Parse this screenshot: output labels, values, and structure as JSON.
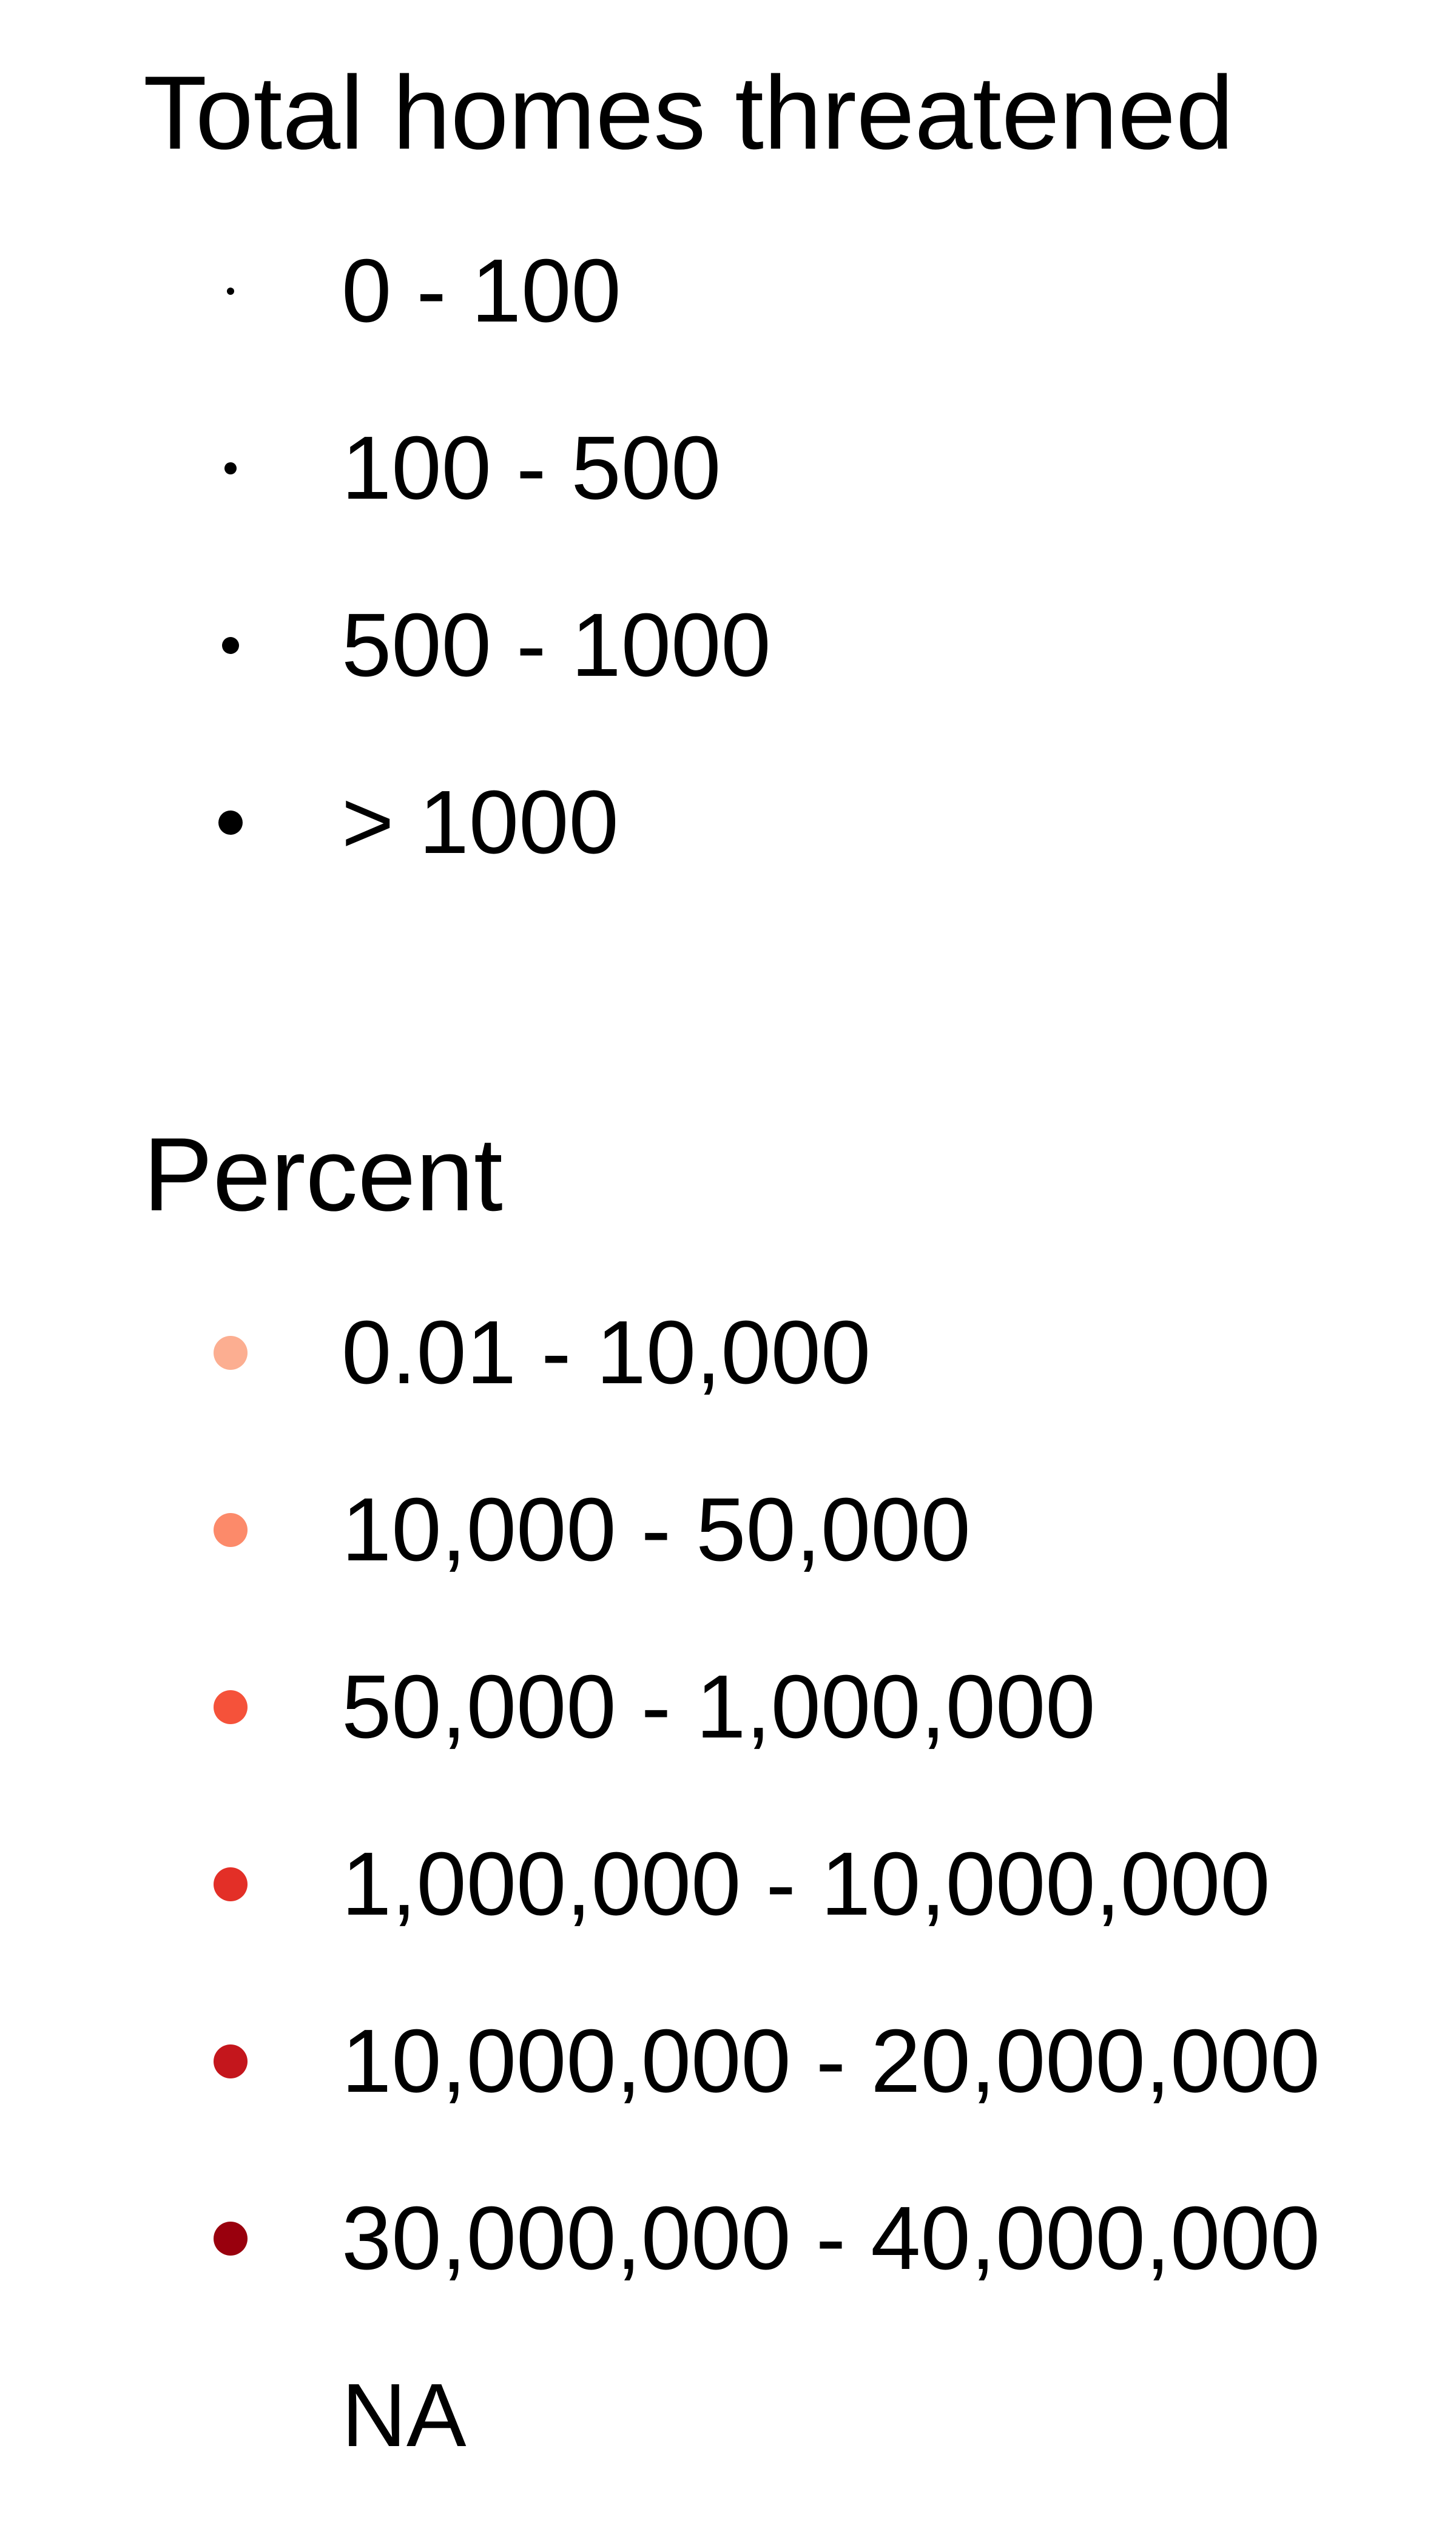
{
  "chart_data": {
    "type": "legend",
    "legends": [
      {
        "title": "Total homes threatened",
        "kind": "size",
        "entries": [
          {
            "label": "0 - 100",
            "color": "#000000",
            "size_rank": 1
          },
          {
            "label": "100 - 500",
            "color": "#000000",
            "size_rank": 2
          },
          {
            "label": "500 - 1000",
            "color": "#000000",
            "size_rank": 3
          },
          {
            "label": "> 1000",
            "color": "#000000",
            "size_rank": 4
          }
        ]
      },
      {
        "title": "Percent",
        "kind": "color",
        "entries": [
          {
            "label": "0.01 - 10,000",
            "color": "#FCAE91"
          },
          {
            "label": "10,000 - 50,000",
            "color": "#FC8A6A"
          },
          {
            "label": "50,000 - 1,000,000",
            "color": "#F5523A"
          },
          {
            "label": "1,000,000 - 10,000,000",
            "color": "#E32F27"
          },
          {
            "label": "10,000,000 - 20,000,000",
            "color": "#C4161C"
          },
          {
            "label": "30,000,000 - 40,000,000",
            "color": "#99000D"
          },
          {
            "label": "NA",
            "color": null
          }
        ]
      }
    ]
  }
}
